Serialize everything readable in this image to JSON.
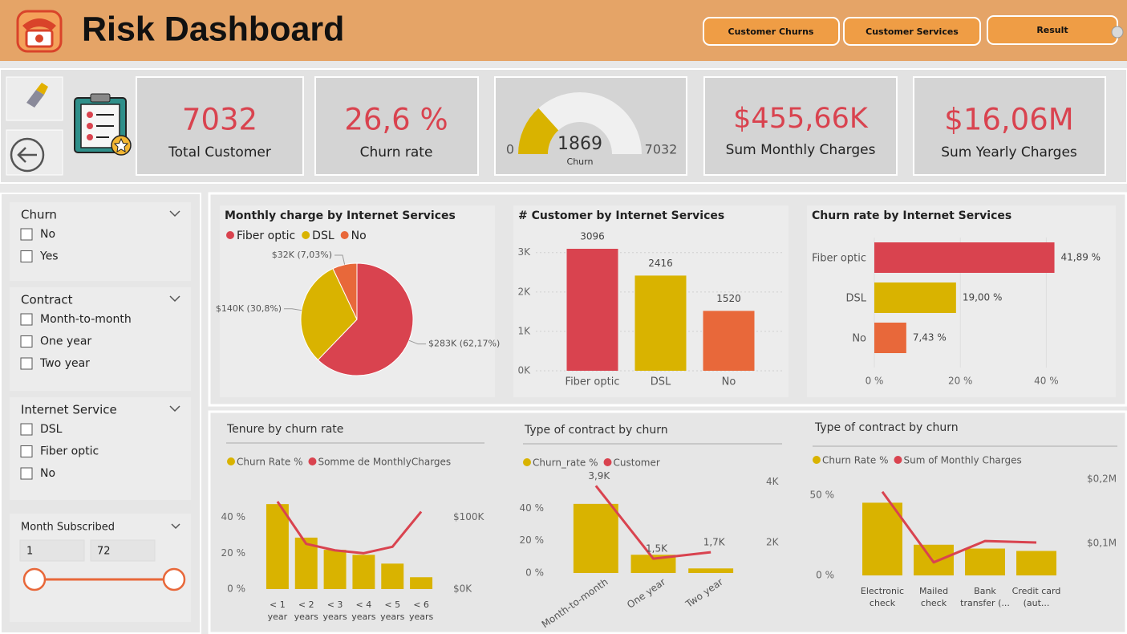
{
  "header": {
    "title": "Risk Dashboard",
    "buttons": [
      "Customer Churns",
      "Customer Services",
      "Result"
    ]
  },
  "kpis": [
    {
      "value": "7032",
      "label": "Total Customer"
    },
    {
      "value": "26,6 %",
      "label": "Churn rate"
    },
    {
      "value": "$455,66K",
      "label": "Sum Monthly Charges"
    },
    {
      "value": "$16,06M",
      "label": "Sum Yearly Charges"
    }
  ],
  "slicers": [
    {
      "title": "Churn",
      "options": [
        "No",
        "Yes"
      ]
    },
    {
      "title": "Contract",
      "options": [
        "Month-to-month",
        "One year",
        "Two year"
      ]
    },
    {
      "title": "Internet Service",
      "options": [
        "DSL",
        "Fiber optic",
        "No"
      ]
    }
  ],
  "range_slicer": {
    "title": "Month Subscribed",
    "min": "1",
    "max": "72"
  },
  "chart_data": [
    {
      "type": "gauge",
      "label": "Churn",
      "value": 1869,
      "min": 0,
      "max": 7032,
      "color": "#d9b300",
      "track_color": "#f0f0f0"
    },
    {
      "type": "pie",
      "title": "Monthly charge by Internet Services",
      "categories": [
        "Fiber optic",
        "DSL",
        "No"
      ],
      "values": [
        283000,
        140000,
        32000
      ],
      "value_labels": [
        "$283K (62,17%)",
        "$140K (30,8%)",
        "$32K (7,03%)"
      ],
      "colors": [
        "#d9434f",
        "#d9b300",
        "#e8683a"
      ]
    },
    {
      "type": "bar",
      "title": "# Customer by Internet Services",
      "categories": [
        "Fiber optic",
        "DSL",
        "No"
      ],
      "values": [
        3096,
        2416,
        1520
      ],
      "colors": [
        "#d9434f",
        "#d9b300",
        "#e8683a"
      ],
      "ylim": [
        0,
        3300
      ],
      "yticks": [
        {
          "value": 0,
          "label": "0K"
        },
        {
          "value": 1000,
          "label": "1K"
        },
        {
          "value": 2000,
          "label": "2K"
        },
        {
          "value": 3000,
          "label": "3K"
        }
      ],
      "grid": true
    },
    {
      "type": "hbar",
      "title": "Churn rate by Internet Services",
      "categories": [
        "Fiber optic",
        "DSL",
        "No"
      ],
      "values": [
        41.89,
        19.0,
        7.43
      ],
      "value_labels": [
        "41,89 %",
        "19,00 %",
        "7,43 %"
      ],
      "colors": [
        "#d9434f",
        "#d9b300",
        "#e8683a"
      ],
      "xlim": [
        0,
        50
      ],
      "xticks": [
        {
          "value": 0,
          "label": "0 %"
        },
        {
          "value": 20,
          "label": "20 %"
        },
        {
          "value": 40,
          "label": "40 %"
        }
      ],
      "grid": true
    },
    {
      "type": "combo",
      "title": "Tenure by churn rate",
      "categories": [
        "< 1 year",
        "< 2 years",
        "< 3 years",
        "< 4 years",
        "< 5 years",
        "< 6 years"
      ],
      "series": [
        {
          "name": "Churn Rate %",
          "color": "#d9b300",
          "values": [
            47.4,
            28.7,
            21.9,
            19.1,
            14.2,
            6.6
          ]
        },
        {
          "name": "Somme de MonthlyCharges",
          "color": "#d9434f",
          "axis": "y2",
          "values": [
            122000,
            63000,
            54000,
            50000,
            59000,
            108000
          ]
        }
      ],
      "ylim": [
        0,
        60
      ],
      "yticks": [
        {
          "value": 0,
          "label": "0 %"
        },
        {
          "value": 20,
          "label": "20 %"
        },
        {
          "value": 40,
          "label": "40 %"
        }
      ],
      "y2lim": [
        0,
        150000
      ],
      "y2ticks": [
        {
          "value": 0,
          "label": "$0K"
        },
        {
          "value": 100000,
          "label": "$100K"
        }
      ]
    },
    {
      "type": "combo",
      "title": "Type of contract by churn",
      "categories": [
        "Month-to-month",
        "One year",
        "Two year"
      ],
      "series": [
        {
          "name": "Churn_rate %",
          "color": "#d9b300",
          "values": [
            42.71,
            11.27,
            2.83
          ]
        },
        {
          "name": "Customer",
          "color": "#d9434f",
          "axis": "y2",
          "values": [
            3875,
            1472,
            1685
          ],
          "value_labels": [
            "3,9K",
            "1,5K",
            "1,7K"
          ]
        }
      ],
      "ylim": [
        0,
        60
      ],
      "yticks": [
        {
          "value": 0,
          "label": "0 %"
        },
        {
          "value": 20,
          "label": "20 %"
        },
        {
          "value": 40,
          "label": "40 %"
        }
      ],
      "y2lim": [
        1000,
        4200
      ],
      "y2ticks": [
        {
          "value": 2000,
          "label": "2K"
        },
        {
          "value": 4000,
          "label": "4K"
        }
      ]
    },
    {
      "type": "combo",
      "title": "Type of contract by churn",
      "categories": [
        "Electronic check",
        "Mailed check",
        "Bank transfer (...",
        "Credit card (aut..."
      ],
      "series": [
        {
          "name": "Churn Rate %",
          "color": "#d9b300",
          "values": [
            45.29,
            19.11,
            16.73,
            15.25
          ]
        },
        {
          "name": "Sum of Monthly Charges",
          "color": "#d9434f",
          "axis": "y2",
          "values": [
            180300,
            70400,
            103600,
            101200
          ]
        }
      ],
      "ylim": [
        0,
        60
      ],
      "yticks": [
        {
          "value": 0,
          "label": "0 %"
        },
        {
          "value": 50,
          "label": "50 %"
        }
      ],
      "y2lim": [
        50000,
        200000
      ],
      "y2ticks": [
        {
          "value": 100000,
          "label": "$0,1M"
        },
        {
          "value": 200000,
          "label": "$0,2M"
        }
      ]
    }
  ]
}
